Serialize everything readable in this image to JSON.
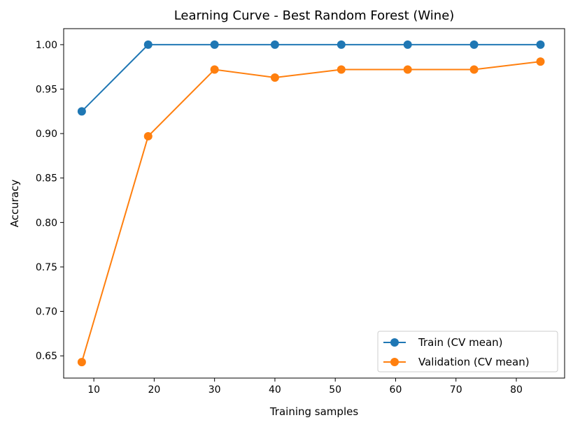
{
  "chart_data": {
    "type": "line",
    "title": "Learning Curve - Best Random Forest (Wine)",
    "xlabel": "Training samples",
    "ylabel": "Accuracy",
    "xlim": [
      5,
      88
    ],
    "ylim": [
      0.625,
      1.018
    ],
    "xticks": [
      10,
      20,
      30,
      40,
      50,
      60,
      70,
      80
    ],
    "yticks": [
      0.65,
      0.7,
      0.75,
      0.8,
      0.85,
      0.9,
      0.95,
      1.0
    ],
    "x": [
      8,
      19,
      30,
      40,
      51,
      62,
      73,
      84
    ],
    "series": [
      {
        "name": "Train (CV mean)",
        "color": "#1f77b4",
        "values": [
          0.925,
          1.0,
          1.0,
          1.0,
          1.0,
          1.0,
          1.0,
          1.0
        ]
      },
      {
        "name": "Validation (CV mean)",
        "color": "#ff7f0e",
        "values": [
          0.643,
          0.897,
          0.972,
          0.963,
          0.972,
          0.972,
          0.972,
          0.981
        ]
      }
    ],
    "grid": false,
    "legend_position": "bottom-right"
  }
}
